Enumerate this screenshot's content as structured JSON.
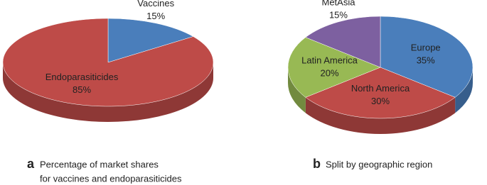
{
  "chart_data": [
    {
      "type": "pie3d",
      "panel": "a",
      "caption": [
        "Percentage of market shares",
        "for vaccines and endoparasiticides"
      ],
      "categories": [
        "Vaccines",
        "Endoparasiticides"
      ],
      "values": [
        15,
        85
      ],
      "value_labels": [
        "15%",
        "85%"
      ],
      "colors": [
        "#4a7ebb",
        "#be4b48"
      ]
    },
    {
      "type": "pie3d",
      "panel": "b",
      "caption": [
        "Split by geographic region"
      ],
      "categories": [
        "Europe",
        "North America",
        "Latin America",
        "MetAsia"
      ],
      "values": [
        35,
        30,
        20,
        15
      ],
      "value_labels": [
        "35%",
        "30%",
        "20%",
        "15%"
      ],
      "colors": [
        "#4a7ebb",
        "#be4b48",
        "#98b954",
        "#7d60a0"
      ]
    }
  ]
}
